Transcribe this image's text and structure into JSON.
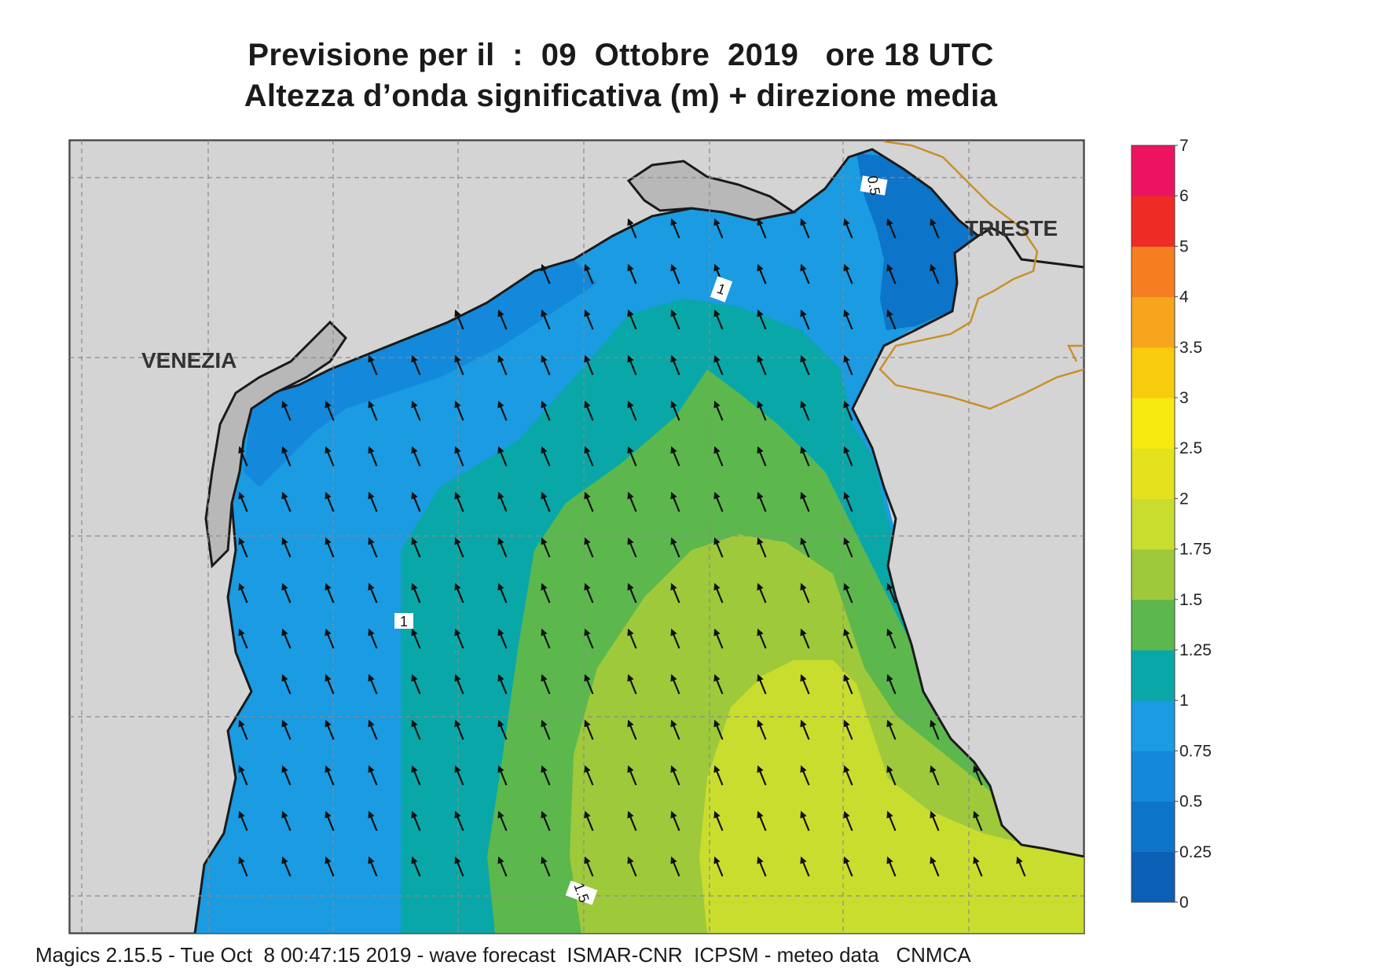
{
  "title": {
    "line1": "Previsione per il  :  09  Ottobre  2019   ore 18 UTC",
    "line2": "Altezza d’onda significativa (m) + direzione media"
  },
  "map": {
    "cities": {
      "venezia": "VENEZIA",
      "trieste": "TRIESTE"
    },
    "contour_labels": {
      "half": "0.5",
      "one_north": "1",
      "one_west": "1",
      "one_half": "1.5"
    },
    "arrow_direction": "north-northwest"
  },
  "colorbar": {
    "labels": [
      "0",
      "0.25",
      "0.5",
      "0.75",
      "1",
      "1.25",
      "1.5",
      "1.75",
      "2",
      "2.5",
      "3",
      "3.5",
      "4",
      "5",
      "6",
      "7"
    ],
    "colors": [
      "#0b5fb5",
      "#0c74c9",
      "#1488da",
      "#1a9be2",
      "#0aa7a8",
      "#5cb84c",
      "#9ec93b",
      "#c9dd2e",
      "#e4e21c",
      "#f7ea11",
      "#f8cb0c",
      "#f7a51d",
      "#f57f20",
      "#ee2b25",
      "#ec1460"
    ]
  },
  "colors": {
    "land": "#d4d4d4",
    "land_dark": "#b8b8b8",
    "border": "#c8902c",
    "coast": "#1a1a1a"
  },
  "footer": "Magics 2.15.5 - Tue Oct  8 00:47:15 2019 - wave forecast  ISMAR-CNR  ICPSM - meteo data   CNMCA"
}
